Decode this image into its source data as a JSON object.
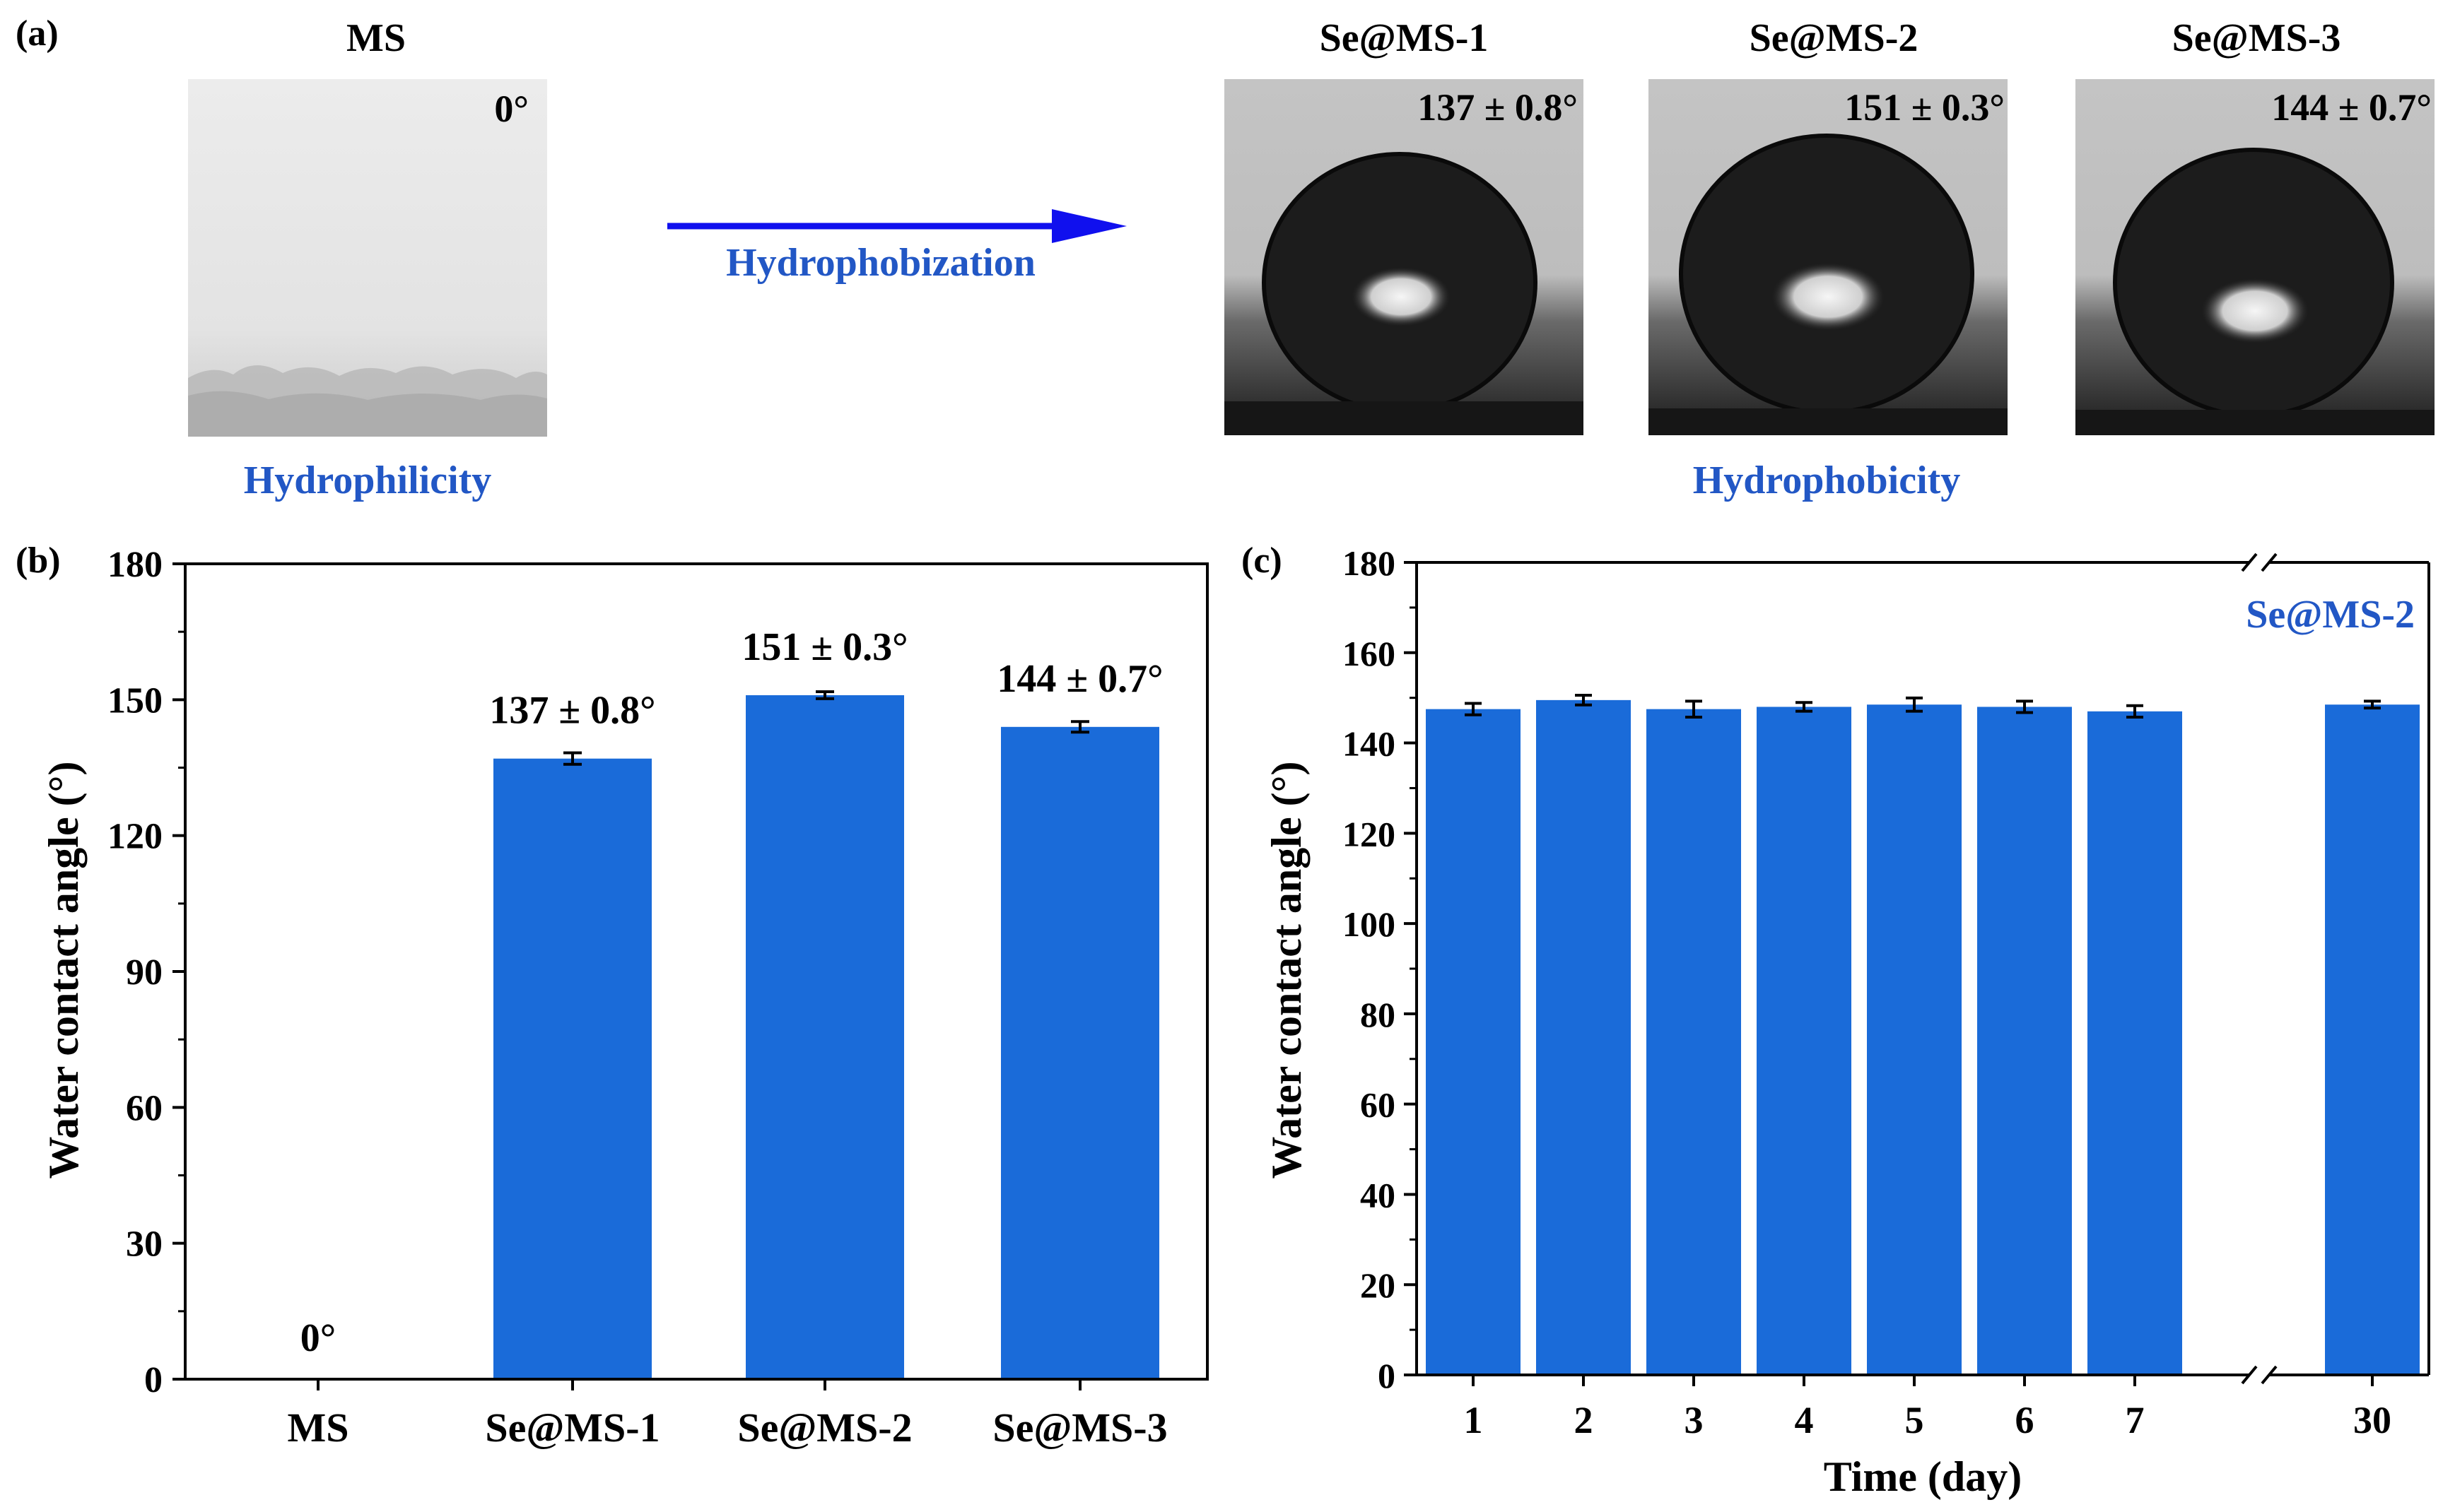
{
  "colors": {
    "bar": "#1a6bd9",
    "accent_text": "#2257c5",
    "arrow": "#1010ee",
    "axis": "#000000"
  },
  "panel_a": {
    "label": "(a)",
    "ms_title": "MS",
    "ms_angle": "0°",
    "ms_caption": "Hydrophilicity",
    "arrow_label": "Hydrophobization",
    "samples": [
      {
        "title": "Se@MS-1",
        "angle": "137 ± 0.8°"
      },
      {
        "title": "Se@MS-2",
        "angle": "151 ± 0.3°"
      },
      {
        "title": "Se@MS-3",
        "angle": "144 ± 0.7°"
      }
    ],
    "caption_right": "Hydrophobicity"
  },
  "chart_data": [
    {
      "panel_label": "(b)",
      "type": "bar",
      "title": "",
      "xlabel": "",
      "ylabel": "Water contact angle (°)",
      "ylim": [
        0,
        180
      ],
      "yticks": [
        0,
        30,
        60,
        90,
        120,
        150,
        180
      ],
      "categories": [
        "MS",
        "Se@MS-1",
        "Se@MS-2",
        "Se@MS-3"
      ],
      "values": [
        0,
        137,
        151,
        144
      ],
      "errors": [
        0,
        0.8,
        0.3,
        0.7
      ],
      "data_labels": [
        "0°",
        "137 ± 0.8°",
        "151 ± 0.3°",
        "144 ± 0.7°"
      ]
    },
    {
      "panel_label": "(c)",
      "type": "bar",
      "title": "",
      "legend_text": "Se@MS-2",
      "xlabel": "Time (day)",
      "ylabel": "Water contact angle (°)",
      "ylim": [
        0,
        180
      ],
      "yticks": [
        0,
        20,
        40,
        60,
        80,
        100,
        120,
        140,
        160,
        180
      ],
      "axis_break": "between 7 and 30",
      "categories": [
        "1",
        "2",
        "3",
        "4",
        "5",
        "6",
        "7",
        "30"
      ],
      "values": [
        147.5,
        149.5,
        147.5,
        148,
        148.5,
        148,
        147,
        148.5
      ],
      "errors": [
        0.8,
        0.6,
        1.3,
        0.5,
        1.0,
        0.8,
        0.8,
        0.3
      ]
    }
  ]
}
